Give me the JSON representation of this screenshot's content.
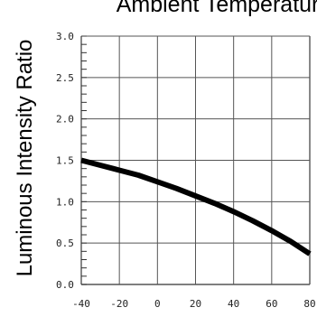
{
  "chart_data": {
    "type": "line",
    "title": "Ambient Temperature",
    "ylabel": "Luminous Intensity Ratio",
    "xlabel": "",
    "x_ticks": [
      "-40",
      "-20",
      "0",
      "20",
      "40",
      "60",
      "80"
    ],
    "y_ticks": [
      "0.0",
      "0.5",
      "1.0",
      "1.5",
      "2.0",
      "2.5",
      "3.0"
    ],
    "xlim": [
      -40,
      80
    ],
    "ylim": [
      0,
      3
    ],
    "grid": true,
    "series": [
      {
        "x": [
          -40,
          -30,
          -20,
          -10,
          0,
          10,
          20,
          30,
          40,
          50,
          60,
          70,
          80
        ],
        "y": [
          1.5,
          1.44,
          1.38,
          1.32,
          1.24,
          1.16,
          1.07,
          0.98,
          0.88,
          0.77,
          0.65,
          0.52,
          0.37
        ]
      }
    ],
    "colors": {
      "line": "#000000",
      "grid": "#555555",
      "text": "#000000"
    }
  }
}
